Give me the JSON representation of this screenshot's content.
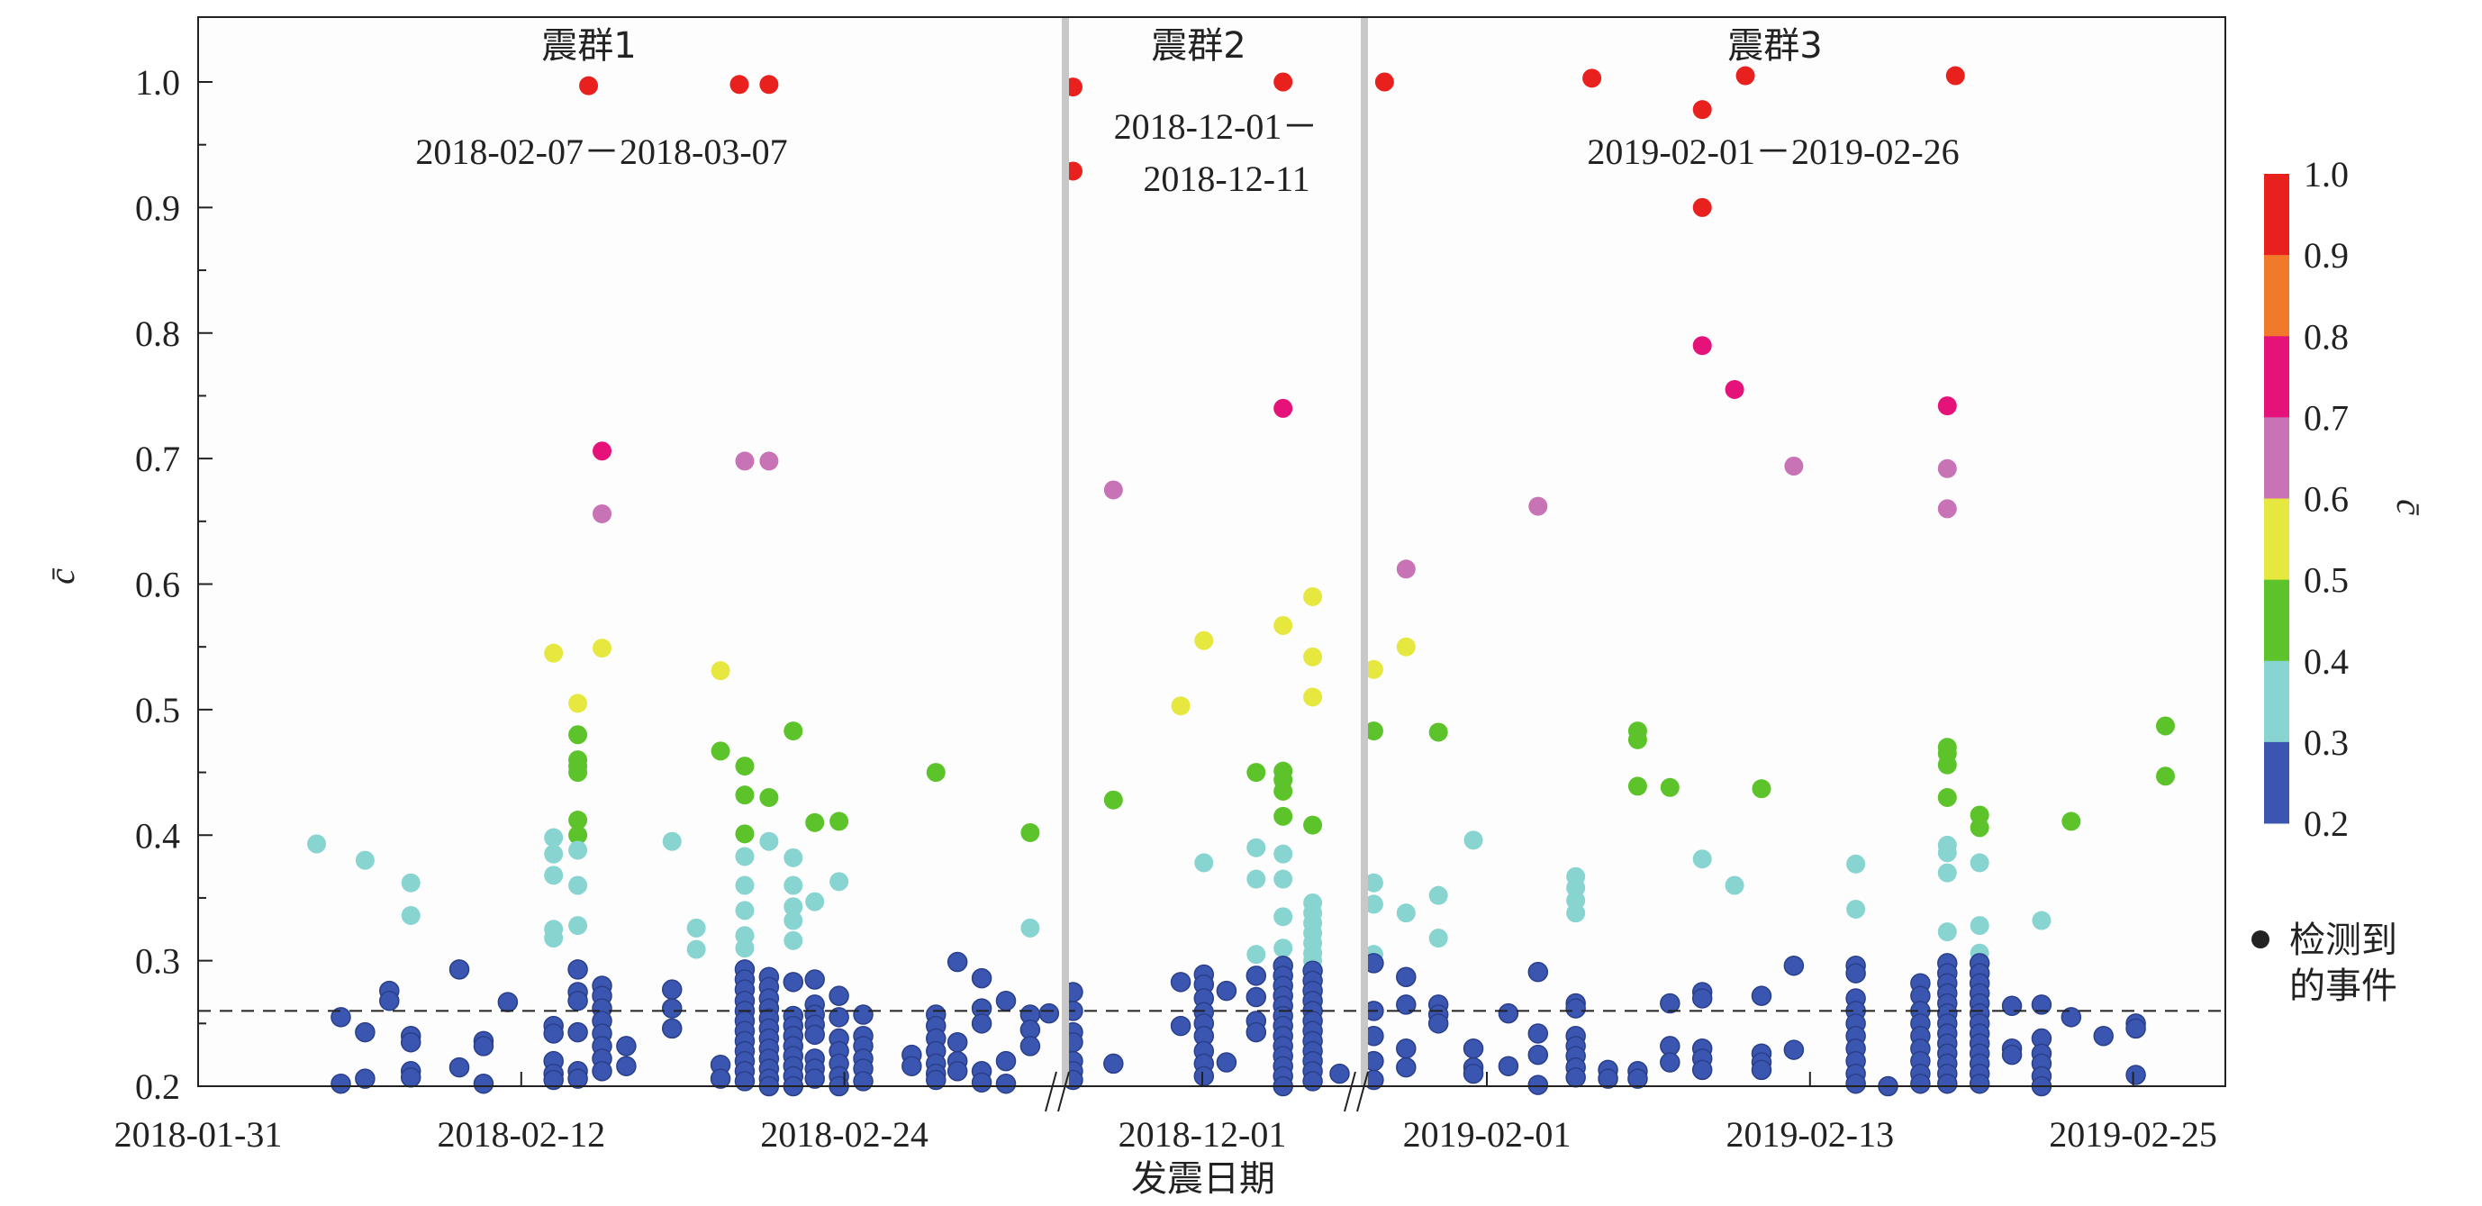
{
  "chart_data": {
    "type": "scatter",
    "title": "",
    "xlabel": "发震日期",
    "ylabel": "c̄",
    "ylim": [
      0.2,
      1.05
    ],
    "yticks": [
      "0.2",
      "0.3",
      "0.4",
      "0.5",
      "0.6",
      "0.7",
      "0.8",
      "0.9",
      "1.0"
    ],
    "threshold": 0.26,
    "grid": false,
    "colorbar": {
      "label": "c̄",
      "ticks": [
        "1.0",
        "0.9",
        "0.8",
        "0.7",
        "0.6",
        "0.5",
        "0.4",
        "0.3",
        "0.2"
      ],
      "bins": [
        {
          "min": 0.9,
          "max": 1.0,
          "color": "#e8201e"
        },
        {
          "min": 0.8,
          "max": 0.9,
          "color": "#f07a2a"
        },
        {
          "min": 0.7,
          "max": 0.8,
          "color": "#e5127a"
        },
        {
          "min": 0.6,
          "max": 0.7,
          "color": "#c873b5"
        },
        {
          "min": 0.5,
          "max": 0.6,
          "color": "#e6e840"
        },
        {
          "min": 0.4,
          "max": 0.5,
          "color": "#5cc42a"
        },
        {
          "min": 0.3,
          "max": 0.4,
          "color": "#88d4d0"
        },
        {
          "min": 0.2,
          "max": 0.3,
          "color": "#3a56b0"
        }
      ]
    },
    "legend": {
      "marker_color": "#222222",
      "line1": "检测到",
      "line2": "的事件",
      "placement": "right"
    },
    "segments": [
      {
        "name": "震群1",
        "period": "2018-02-07－2018-03-07",
        "origin": "2018-01-31",
        "xrange": [
          0,
          32.2
        ],
        "ticks": [
          {
            "day": 0,
            "label": "2018-01-31"
          },
          {
            "day": 12,
            "label": "2018-02-12"
          },
          {
            "day": 24,
            "label": "2018-02-24"
          }
        ],
        "columns": [
          [
            4.4,
            [
              0.393
            ]
          ],
          [
            5.3,
            [
              0.255,
              0.202
            ]
          ],
          [
            6.2,
            [
              0.38,
              0.243,
              0.206
            ]
          ],
          [
            7.1,
            [
              0.276,
              0.268
            ]
          ],
          [
            7.9,
            [
              0.362,
              0.336,
              0.24,
              0.235,
              0.212,
              0.207
            ]
          ],
          [
            9.7,
            [
              0.293,
              0.215
            ]
          ],
          [
            10.6,
            [
              0.236,
              0.232,
              0.202
            ]
          ],
          [
            11.5,
            [
              0.267
            ]
          ],
          [
            13.2,
            [
              0.545,
              0.398,
              0.385,
              0.368,
              0.325,
              0.318,
              0.248,
              0.242,
              0.22,
              0.21,
              0.205
            ]
          ],
          [
            14.1,
            [
              0.505,
              0.48,
              0.46,
              0.455,
              0.45,
              0.412,
              0.4,
              0.388,
              0.36,
              0.328,
              0.293,
              0.275,
              0.268,
              0.243,
              0.212,
              0.206
            ]
          ],
          [
            14.5,
            [
              0.997
            ]
          ],
          [
            15.0,
            [
              0.706,
              0.656,
              0.549,
              0.28,
              0.272,
              0.262,
              0.252,
              0.242,
              0.232,
              0.222,
              0.212
            ]
          ],
          [
            15.9,
            [
              0.232,
              0.216
            ]
          ],
          [
            17.6,
            [
              0.395,
              0.277,
              0.262,
              0.246
            ]
          ],
          [
            18.5,
            [
              0.326,
              0.309
            ]
          ],
          [
            19.4,
            [
              0.531,
              0.467,
              0.217,
              0.206
            ]
          ],
          [
            20.1,
            [
              0.998
            ]
          ],
          [
            20.3,
            [
              0.698,
              0.455,
              0.432,
              0.401,
              0.383,
              0.36,
              0.34,
              0.32,
              0.31,
              0.293,
              0.285,
              0.277,
              0.268,
              0.26,
              0.252,
              0.244,
              0.236,
              0.228,
              0.22,
              0.212,
              0.204
            ]
          ],
          [
            21.2,
            [
              0.998,
              0.698,
              0.43,
              0.395,
              0.287,
              0.279,
              0.27,
              0.262,
              0.254,
              0.246,
              0.238,
              0.23,
              0.222,
              0.214,
              0.206,
              0.2
            ]
          ],
          [
            22.1,
            [
              0.483,
              0.382,
              0.36,
              0.343,
              0.332,
              0.316,
              0.283,
              0.256,
              0.248,
              0.24,
              0.232,
              0.224,
              0.216,
              0.208,
              0.2
            ]
          ],
          [
            22.9,
            [
              0.41,
              0.347,
              0.285,
              0.265,
              0.257,
              0.249,
              0.241,
              0.222,
              0.214,
              0.206
            ]
          ],
          [
            23.8,
            [
              0.411,
              0.363,
              0.272,
              0.255,
              0.238,
              0.228,
              0.218,
              0.208,
              0.2
            ]
          ],
          [
            24.7,
            [
              0.257,
              0.24,
              0.232,
              0.222,
              0.214,
              0.204
            ]
          ],
          [
            26.5,
            [
              0.225,
              0.216
            ]
          ],
          [
            27.4,
            [
              0.45,
              0.257,
              0.248,
              0.238,
              0.228,
              0.218,
              0.21,
              0.205
            ]
          ],
          [
            28.2,
            [
              0.299,
              0.235,
              0.22,
              0.212
            ]
          ],
          [
            29.1,
            [
              0.286,
              0.262,
              0.25,
              0.212,
              0.203
            ]
          ],
          [
            30.0,
            [
              0.268,
              0.22,
              0.202
            ]
          ],
          [
            30.9,
            [
              0.402,
              0.326,
              0.257,
              0.245,
              0.232
            ]
          ],
          [
            31.6,
            [
              0.258
            ]
          ]
        ]
      },
      {
        "name": "震群2",
        "period_line1": "2018-12-01－",
        "period_line2": "2018-12-11",
        "origin": "2018-12-01",
        "xrange": [
          -5.1,
          6.0
        ],
        "ticks": [
          {
            "day": 0,
            "label": "2018-12-01"
          }
        ],
        "columns": [
          [
            -4.8,
            [
              0.996,
              0.929,
              0.275,
              0.26,
              0.243,
              0.235,
              0.22,
              0.212,
              0.205
            ]
          ],
          [
            -3.3,
            [
              0.675,
              0.428,
              0.218
            ]
          ],
          [
            -0.8,
            [
              0.503,
              0.283,
              0.248
            ]
          ],
          [
            0.06,
            [
              0.555,
              0.378,
              0.289,
              0.281,
              0.27,
              0.259,
              0.25,
              0.24,
              0.228,
              0.218,
              0.208
            ]
          ],
          [
            0.9,
            [
              0.276,
              0.219
            ]
          ],
          [
            2.0,
            [
              0.45,
              0.39,
              0.365,
              0.305,
              0.288,
              0.271,
              0.252,
              0.243
            ]
          ],
          [
            3.0,
            [
              1.0,
              0.74,
              0.567,
              0.451,
              0.444,
              0.435,
              0.415,
              0.385,
              0.365,
              0.335,
              0.31,
              0.296,
              0.288,
              0.28,
              0.272,
              0.264,
              0.256,
              0.248,
              0.24,
              0.232,
              0.224,
              0.216,
              0.208,
              0.2
            ]
          ],
          [
            4.1,
            [
              0.59,
              0.542,
              0.51,
              0.408,
              0.346,
              0.338,
              0.33,
              0.322,
              0.314,
              0.306,
              0.3,
              0.292,
              0.284,
              0.276,
              0.268,
              0.26,
              0.252,
              0.244,
              0.236,
              0.228,
              0.22,
              0.212,
              0.204
            ]
          ],
          [
            5.1,
            [
              0.21
            ]
          ]
        ]
      },
      {
        "name": "震群3",
        "period": "2019-02-01－2019-02-26",
        "origin": "2019-02-01",
        "xrange": [
          -4.5,
          27.4
        ],
        "ticks": [
          {
            "day": 0,
            "label": "2019-02-01"
          },
          {
            "day": 12,
            "label": "2019-02-13"
          },
          {
            "day": 24,
            "label": "2019-02-25"
          }
        ],
        "columns": [
          [
            -4.2,
            [
              0.532,
              0.483,
              0.362,
              0.345,
              0.305,
              0.298,
              0.26,
              0.24,
              0.22,
              0.205
            ]
          ],
          [
            -3.8,
            [
              1.0
            ]
          ],
          [
            -3.0,
            [
              0.612,
              0.55,
              0.338,
              0.287,
              0.265,
              0.23,
              0.215
            ]
          ],
          [
            -1.8,
            [
              0.482,
              0.352,
              0.318,
              0.265,
              0.257,
              0.25
            ]
          ],
          [
            -0.5,
            [
              0.396,
              0.23,
              0.215,
              0.21
            ]
          ],
          [
            0.8,
            [
              0.258,
              0.216
            ]
          ],
          [
            1.9,
            [
              0.662,
              0.291,
              0.242,
              0.225,
              0.201
            ]
          ],
          [
            3.3,
            [
              0.367,
              0.358,
              0.348,
              0.338,
              0.266,
              0.262,
              0.24,
              0.232,
              0.224,
              0.215,
              0.207
            ]
          ],
          [
            3.9,
            [
              1.003
            ]
          ],
          [
            4.5,
            [
              0.213,
              0.206
            ]
          ],
          [
            5.6,
            [
              0.483,
              0.476,
              0.439,
              0.212,
              0.206
            ]
          ],
          [
            6.8,
            [
              0.438,
              0.266,
              0.232,
              0.219
            ]
          ],
          [
            8.0,
            [
              0.978,
              0.9,
              0.79,
              0.381,
              0.275,
              0.27,
              0.23,
              0.222,
              0.213
            ]
          ],
          [
            9.2,
            [
              0.755,
              0.36
            ]
          ],
          [
            9.6,
            [
              1.005
            ]
          ],
          [
            10.2,
            [
              0.437,
              0.272,
              0.226,
              0.219,
              0.213
            ]
          ],
          [
            11.4,
            [
              0.694,
              0.296,
              0.229
            ]
          ],
          [
            13.7,
            [
              0.377,
              0.341,
              0.296,
              0.29,
              0.27,
              0.26,
              0.25,
              0.24,
              0.23,
              0.22,
              0.21,
              0.202
            ]
          ],
          [
            14.9,
            [
              0.2
            ]
          ],
          [
            16.1,
            [
              0.282,
              0.272,
              0.26,
              0.25,
              0.24,
              0.23,
              0.22,
              0.21,
              0.202
            ]
          ],
          [
            17.1,
            [
              0.742,
              0.692,
              0.66,
              0.47,
              0.465,
              0.456,
              0.43,
              0.392,
              0.386,
              0.37,
              0.323,
              0.298,
              0.29,
              0.282,
              0.274,
              0.266,
              0.258,
              0.25,
              0.242,
              0.234,
              0.226,
              0.218,
              0.21,
              0.202
            ]
          ],
          [
            17.4,
            [
              1.005
            ]
          ],
          [
            18.3,
            [
              0.416,
              0.406,
              0.378,
              0.328,
              0.306,
              0.298,
              0.29,
              0.282,
              0.274,
              0.266,
              0.258,
              0.25,
              0.242,
              0.234,
              0.226,
              0.218,
              0.21,
              0.202
            ]
          ],
          [
            19.5,
            [
              0.264,
              0.23,
              0.225
            ]
          ],
          [
            20.6,
            [
              0.332,
              0.265,
              0.238,
              0.226,
              0.218,
              0.208,
              0.2
            ]
          ],
          [
            21.7,
            [
              0.411,
              0.255
            ]
          ],
          [
            22.9,
            [
              0.24
            ]
          ],
          [
            24.1,
            [
              0.25,
              0.246,
              0.209
            ]
          ],
          [
            25.2,
            [
              0.487,
              0.447
            ]
          ]
        ]
      }
    ]
  }
}
